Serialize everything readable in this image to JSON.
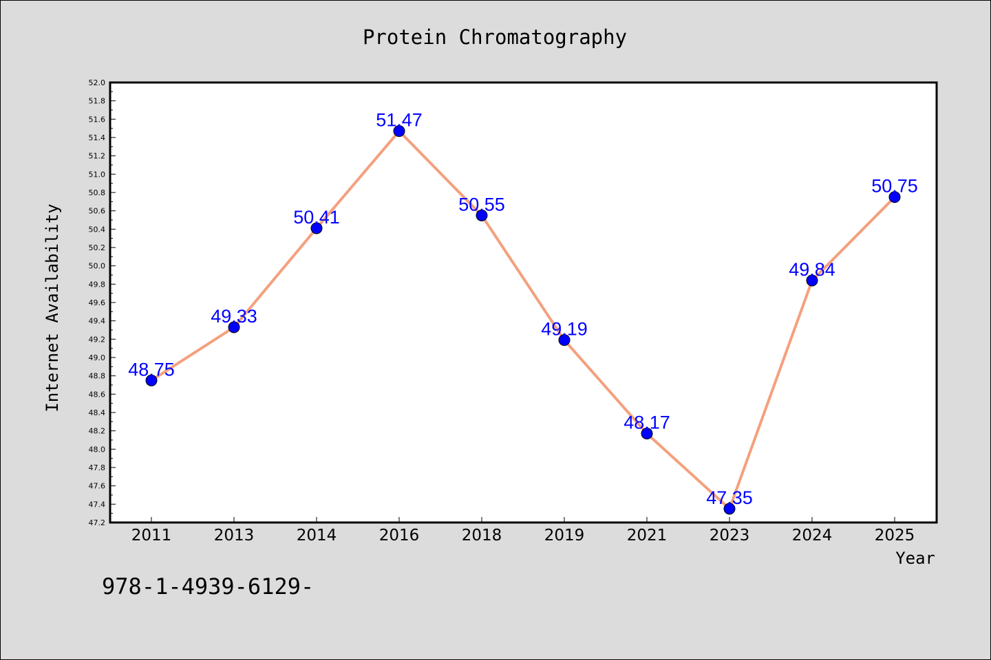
{
  "chart_data": {
    "type": "line",
    "title": "Protein Chromatography",
    "xlabel": "Year",
    "ylabel": "Internet Availability",
    "categories": [
      "2011",
      "2013",
      "2014",
      "2016",
      "2018",
      "2019",
      "2021",
      "2023",
      "2024",
      "2025"
    ],
    "series": [
      {
        "values": [
          48.75,
          49.33,
          50.41,
          51.47,
          50.55,
          49.19,
          48.17,
          47.35,
          49.84,
          50.75
        ],
        "line_color": "#f4a07e",
        "marker_color": "#0000ff"
      }
    ],
    "data_labels": [
      "48.75",
      "49.33",
      "50.41",
      "51.47",
      "50.55",
      "49.19",
      "48.17",
      "47.35",
      "49.84",
      "50.75"
    ],
    "ylim": [
      47.2,
      52.0
    ],
    "yticks": [
      "47.2",
      "47.4",
      "47.6",
      "47.8",
      "48.0",
      "48.2",
      "48.4",
      "48.6",
      "48.8",
      "49.0",
      "49.2",
      "49.4",
      "49.6",
      "49.8",
      "50.0",
      "50.2",
      "50.4",
      "50.6",
      "50.8",
      "51.0",
      "51.2",
      "51.4",
      "51.6",
      "51.8",
      "52.0"
    ],
    "grid": false,
    "legend": "none"
  },
  "footnote": "978-1-4939-6129-"
}
